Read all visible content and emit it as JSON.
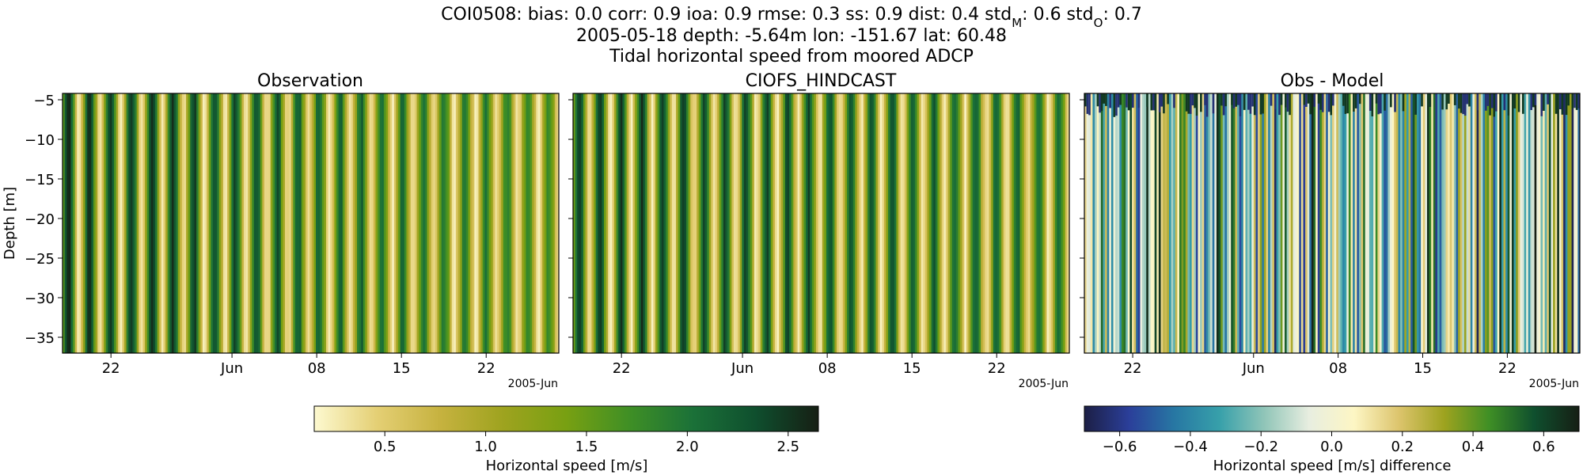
{
  "header": {
    "line1": "COI0508: bias: 0.0  corr: 0.9  ioa: 0.9  rmse: 0.3  ss: 0.9  dist: 0.4  std",
    "line1_sub_model": "M",
    "line1_mid": ": 0.6  std",
    "line1_sub_obs": "O",
    "line1_end": ": 0.7",
    "line2": "2005-05-18 depth: -5.64m lon: -151.67 lat: 60.48",
    "line3": "Tidal horizontal speed from moored ADCP"
  },
  "chart_data": [
    {
      "type": "heatmap",
      "title": "Observation",
      "ylabel": "Depth [m]",
      "xlabel": "",
      "x_tick_labels": [
        "22",
        "Jun",
        "08",
        "15",
        "22"
      ],
      "x_offset_label": "2005-Jun",
      "xlim": [
        "2005-05-18",
        "2005-06-28"
      ],
      "y_ticks": [
        -5,
        -10,
        -15,
        -20,
        -25,
        -30,
        -35
      ],
      "ylim": [
        -37,
        -4.2
      ],
      "value_range": [
        0.15,
        2.65
      ],
      "colormap": "speed",
      "colorbar_label": "Horizontal speed [m/s]",
      "colorbar_ticks": [
        "0.5",
        "1.0",
        "1.5",
        "2.0",
        "2.5"
      ]
    },
    {
      "type": "heatmap",
      "title": "CIOFS_HINDCAST",
      "ylabel": "",
      "xlabel": "",
      "x_tick_labels": [
        "22",
        "Jun",
        "08",
        "15",
        "22"
      ],
      "x_offset_label": "2005-Jun",
      "xlim": [
        "2005-05-18",
        "2005-06-28"
      ],
      "y_ticks": [
        -5,
        -10,
        -15,
        -20,
        -25,
        -30,
        -35
      ],
      "ylim": [
        -37,
        -4.2
      ],
      "value_range": [
        0.15,
        2.65
      ],
      "colormap": "speed",
      "colorbar_label": "Horizontal speed [m/s]",
      "colorbar_ticks": [
        "0.5",
        "1.0",
        "1.5",
        "2.0",
        "2.5"
      ]
    },
    {
      "type": "heatmap",
      "title": "Obs - Model",
      "ylabel": "",
      "xlabel": "",
      "x_tick_labels": [
        "22",
        "Jun",
        "08",
        "15",
        "22"
      ],
      "x_offset_label": "2005-Jun",
      "xlim": [
        "2005-05-18",
        "2005-06-28"
      ],
      "y_ticks": [
        -5,
        -10,
        -15,
        -20,
        -25,
        -30,
        -35
      ],
      "ylim": [
        -37,
        -4.2
      ],
      "value_range": [
        -0.7,
        0.7
      ],
      "colormap": "diverging",
      "colorbar_label": "Horizontal speed [m/s] difference",
      "colorbar_ticks": [
        "−0.6",
        "−0.4",
        "−0.2",
        "0.0",
        "0.2",
        "0.4",
        "0.6"
      ]
    }
  ],
  "colors": {
    "speed": [
      "#fdf9d0",
      "#e4cf74",
      "#c6b23f",
      "#9ea31f",
      "#78a012",
      "#3f8f25",
      "#1b7138",
      "#0f4f2e",
      "#161f14"
    ],
    "diverging": [
      "#1c1f45",
      "#2b3f9a",
      "#2777a3",
      "#37a0aa",
      "#90c5b8",
      "#e8eee0",
      "#fdf6c4",
      "#dcc46c",
      "#9ea31f",
      "#3f8f25",
      "#0f4f2e",
      "#161f14"
    ]
  }
}
